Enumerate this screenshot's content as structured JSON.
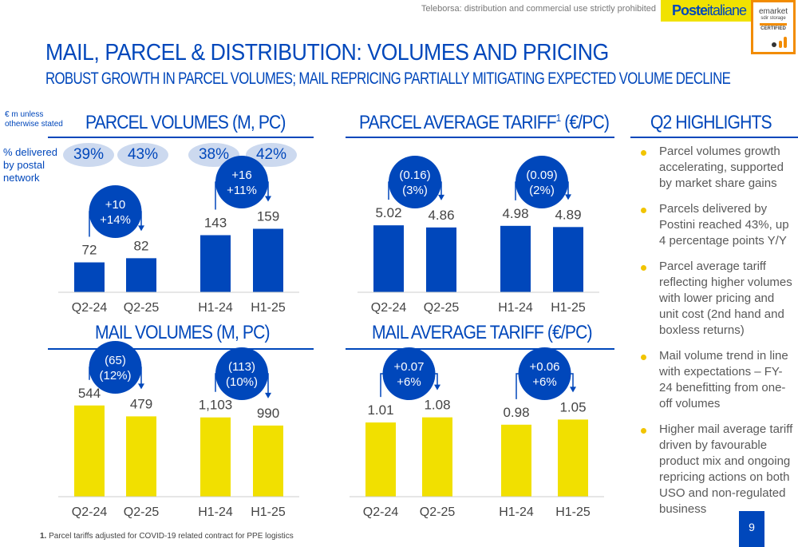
{
  "header": {
    "watermark": "Teleborsa: distribution and commercial use strictly prohibited",
    "logo_text_bold": "Poste",
    "logo_text": "italiane",
    "cert": {
      "line1": "emarket",
      "line2": "sdir storage",
      "line3": "CERTIFIED"
    },
    "title": "MAIL, PARCEL & DISTRIBUTION: VOLUMES AND PRICING",
    "subtitle": "ROBUST GROWTH IN PARCEL VOLUMES; MAIL REPRICING PARTIALLY MITIGATING EXPECTED VOLUME DECLINE"
  },
  "unit_note": "€ m unless otherwise stated",
  "pct_label": "% delivered by postal network",
  "pct_values": [
    "39%",
    "43%",
    "38%",
    "42%"
  ],
  "colors": {
    "brand_blue": "#0047bb",
    "mail_yellow": "#f1e000",
    "bullet": "#f1c400",
    "pill": "#ccd9ef"
  },
  "chart_data": [
    {
      "type": "bar",
      "title": "PARCEL VOLUMES (M, PC)",
      "categories": [
        "Q2-24",
        "Q2-25",
        "H1-24",
        "H1-25"
      ],
      "values": [
        72,
        82,
        143,
        159
      ],
      "value_labels": [
        "72",
        "82",
        "143",
        "159"
      ],
      "deltas": [
        [
          "+10",
          "+14%"
        ],
        [
          "+16",
          "+11%"
        ]
      ],
      "color": "#0047bb"
    },
    {
      "type": "bar",
      "title": "PARCEL AVERAGE TARIFF",
      "title_sup": "1",
      "title_tail": " (€/PC)",
      "categories": [
        "Q2-24",
        "Q2-25",
        "H1-24",
        "H1-25"
      ],
      "values": [
        5.02,
        4.86,
        4.98,
        4.89
      ],
      "value_labels": [
        "5.02",
        "4.86",
        "4.98",
        "4.89"
      ],
      "deltas": [
        [
          "(0.16)",
          "(3%)"
        ],
        [
          "(0.09)",
          "(2%)"
        ]
      ],
      "color": "#0047bb"
    },
    {
      "type": "bar",
      "title": "MAIL VOLUMES (M, PC)",
      "categories": [
        "Q2-24",
        "Q2-25",
        "H1-24",
        "H1-25"
      ],
      "values": [
        544,
        479,
        1103,
        990
      ],
      "value_labels": [
        "544",
        "479",
        "1,103",
        "990"
      ],
      "deltas": [
        [
          "(65)",
          "(12%)"
        ],
        [
          "(113)",
          "(10%)"
        ]
      ],
      "color": "#f1e000"
    },
    {
      "type": "bar",
      "title": "MAIL AVERAGE TARIFF (€/PC)",
      "categories": [
        "Q2-24",
        "Q2-25",
        "H1-24",
        "H1-25"
      ],
      "values": [
        1.01,
        1.08,
        0.98,
        1.05
      ],
      "value_labels": [
        "1.01",
        "1.08",
        "0.98",
        "1.05"
      ],
      "deltas": [
        [
          "+0.07",
          "+6%"
        ],
        [
          "+0.06",
          "+6%"
        ]
      ],
      "color": "#f1e000"
    }
  ],
  "highlights": {
    "title": "Q2 HIGHLIGHTS",
    "items": [
      "Parcel volumes growth accelerating, supported by market share gains",
      "Parcels delivered by Postini reached 43%, up 4 percentage points Y/Y",
      "Parcel average tariff reflecting higher volumes with lower pricing and unit cost (2nd hand and boxless returns)",
      "Mail volume trend in line with expectations – FY-24 benefitting from one-off volumes",
      "Higher mail average tariff driven by favourable product mix and ongoing repricing actions on both USO and non-regulated business"
    ]
  },
  "footnote_num": "1.",
  "footnote": "Parcel tariffs adjusted for COVID-19 related contract for PPE logistics",
  "page_number": "9"
}
